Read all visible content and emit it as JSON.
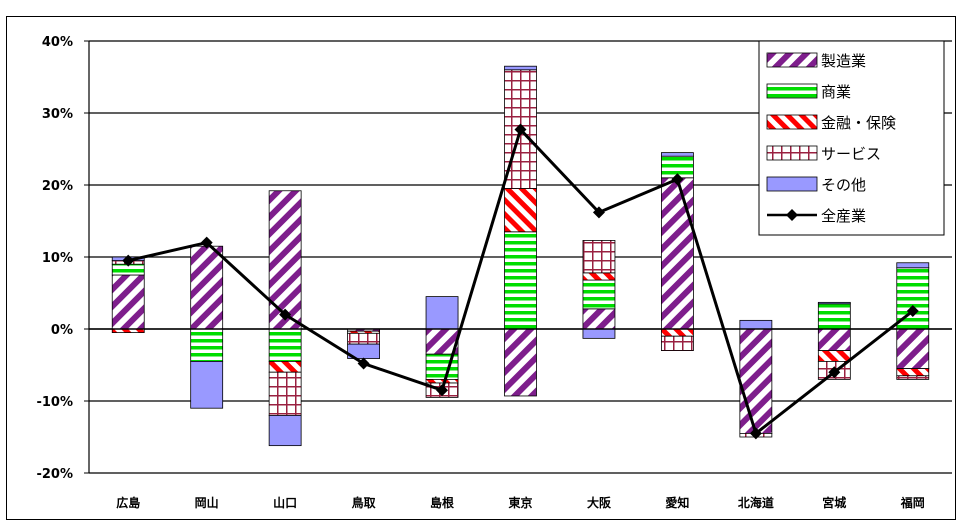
{
  "chart_data": {
    "type": "bar",
    "stacked": true,
    "categories": [
      "広島",
      "岡山",
      "山口",
      "鳥取",
      "島根",
      "東京",
      "大阪",
      "愛知",
      "北海道",
      "宮城",
      "福岡"
    ],
    "y_ticks": [
      "40%",
      "30%",
      "20%",
      "10%",
      "0%",
      "-10%",
      "-20%"
    ],
    "ylim": [
      -20,
      40
    ],
    "grid": true,
    "legend_position": "top-right",
    "series": [
      {
        "name": "製造業",
        "values": [
          7.5,
          11.5,
          19.2,
          -0.3,
          -3.5,
          -9.3,
          2.8,
          21.0,
          -14.5,
          -3.0,
          -5.5
        ]
      },
      {
        "name": "商業",
        "values": [
          1.5,
          -4.5,
          -4.5,
          0,
          -3.5,
          13.5,
          4.0,
          3.0,
          0,
          3.5,
          8.5
        ]
      },
      {
        "name": "金融・保険",
        "values": [
          -0.5,
          0,
          -1.5,
          -0.3,
          -0.5,
          6.0,
          1.0,
          -1.0,
          0,
          -1.5,
          -1.0
        ]
      },
      {
        "name": "サービス",
        "values": [
          0.5,
          0,
          -6.0,
          -1.5,
          -2.0,
          16.5,
          4.5,
          -2.0,
          -0.5,
          -2.5,
          -0.5
        ]
      },
      {
        "name": "その他",
        "values": [
          0.5,
          -6.5,
          -4.2,
          -2.0,
          4.5,
          0.5,
          -1.3,
          0.5,
          1.2,
          0.2,
          0.7
        ]
      }
    ],
    "line_series": {
      "name": "全産業",
      "values": [
        9.5,
        12.0,
        2.0,
        -4.8,
        -8.5,
        27.7,
        16.2,
        20.8,
        -14.5,
        -6.0,
        2.5
      ]
    },
    "colors": {
      "製造業": "#7e1e8c",
      "商業": "#00dd00",
      "金融・保険": "#ff0000",
      "サービス": "#9a2040",
      "その他": "#9999ff",
      "全産業": "#000000"
    }
  }
}
